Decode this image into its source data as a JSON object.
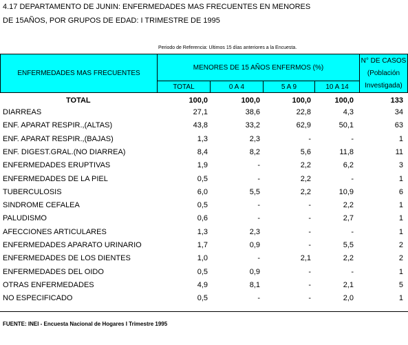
{
  "header": {
    "title_lines": [
      "4.17  DEPARTAMENTO  DE JUNIN: ENFERMEDADES MAS FRECUENTES EN MENORES",
      "DE 15AÑOS, POR GRUPOS DE EDAD: I TRIMESTRE DE 1995"
    ],
    "note": "Periodo de Referencia: Ultimos 15 días anteriores a la Encuesta."
  },
  "table": {
    "col_header": "ENFERMEDADES  MAS  FRECUENTES",
    "group_header": "MENORES DE 15 AÑOS ENFERMOS (%)",
    "sub_headers": [
      "TOTAL",
      "0 A 4",
      "5 A 9",
      "10 A 14"
    ],
    "cases_header": [
      "N° DE CASOS",
      "(Población",
      "Investigada)"
    ],
    "total_row": [
      "TOTAL",
      "100,0",
      "100,0",
      "100,0",
      "100,0",
      "133"
    ],
    "rows": [
      [
        "DIARREAS",
        "27,1",
        "38,6",
        "22,8",
        "4,3",
        "34"
      ],
      [
        "ENF. APARAT RESPIR.,(ALTAS)",
        "43,8",
        "33,2",
        "62,9",
        "50,1",
        "63"
      ],
      [
        "ENF. APARAT RESPIR.,(BAJAS)",
        "1,3",
        "2,3",
        "-",
        "-",
        "1"
      ],
      [
        "ENF. DIGEST.GRAL.(NO DIARREA)",
        "8,4",
        "8,2",
        "5,6",
        "11,8",
        "11"
      ],
      [
        "ENFERMEDADES ERUPTIVAS",
        "1,9",
        "-",
        "2,2",
        "6,2",
        "3"
      ],
      [
        "ENFERMEDADES DE LA PIEL",
        "0,5",
        "-",
        "2,2",
        "-",
        "1"
      ],
      [
        "TUBERCULOSIS",
        "6,0",
        "5,5",
        "2,2",
        "10,9",
        "6"
      ],
      [
        "SINDROME CEFALEA",
        "0,5",
        "-",
        "-",
        "2,2",
        "1"
      ],
      [
        "PALUDISMO",
        "0,6",
        "-",
        "-",
        "2,7",
        "1"
      ],
      [
        "AFECCIONES ARTICULARES",
        "1,3",
        "2,3",
        "-",
        "-",
        "1"
      ],
      [
        "ENFERMEDADES APARATO URINARIO",
        "1,7",
        "0,9",
        "-",
        "5,5",
        "2"
      ],
      [
        "ENFERMEDADES DE LOS DIENTES",
        "1,0",
        "-",
        "2,1",
        "2,2",
        "2"
      ],
      [
        "ENFERMEDADES DEL OIDO",
        "0,5",
        "0,9",
        "-",
        "-",
        "1"
      ],
      [
        "OTRAS ENFERMEDADES",
        "4,9",
        "8,1",
        "-",
        "2,1",
        "5"
      ],
      [
        "NO ESPECIFICADO",
        "0,5",
        "-",
        "-",
        "2,0",
        "1"
      ]
    ]
  },
  "footer": {
    "source": "FUENTE:  INEI -  Encuesta  Nacional  de  Hogares  I  Trimestre  1995"
  }
}
